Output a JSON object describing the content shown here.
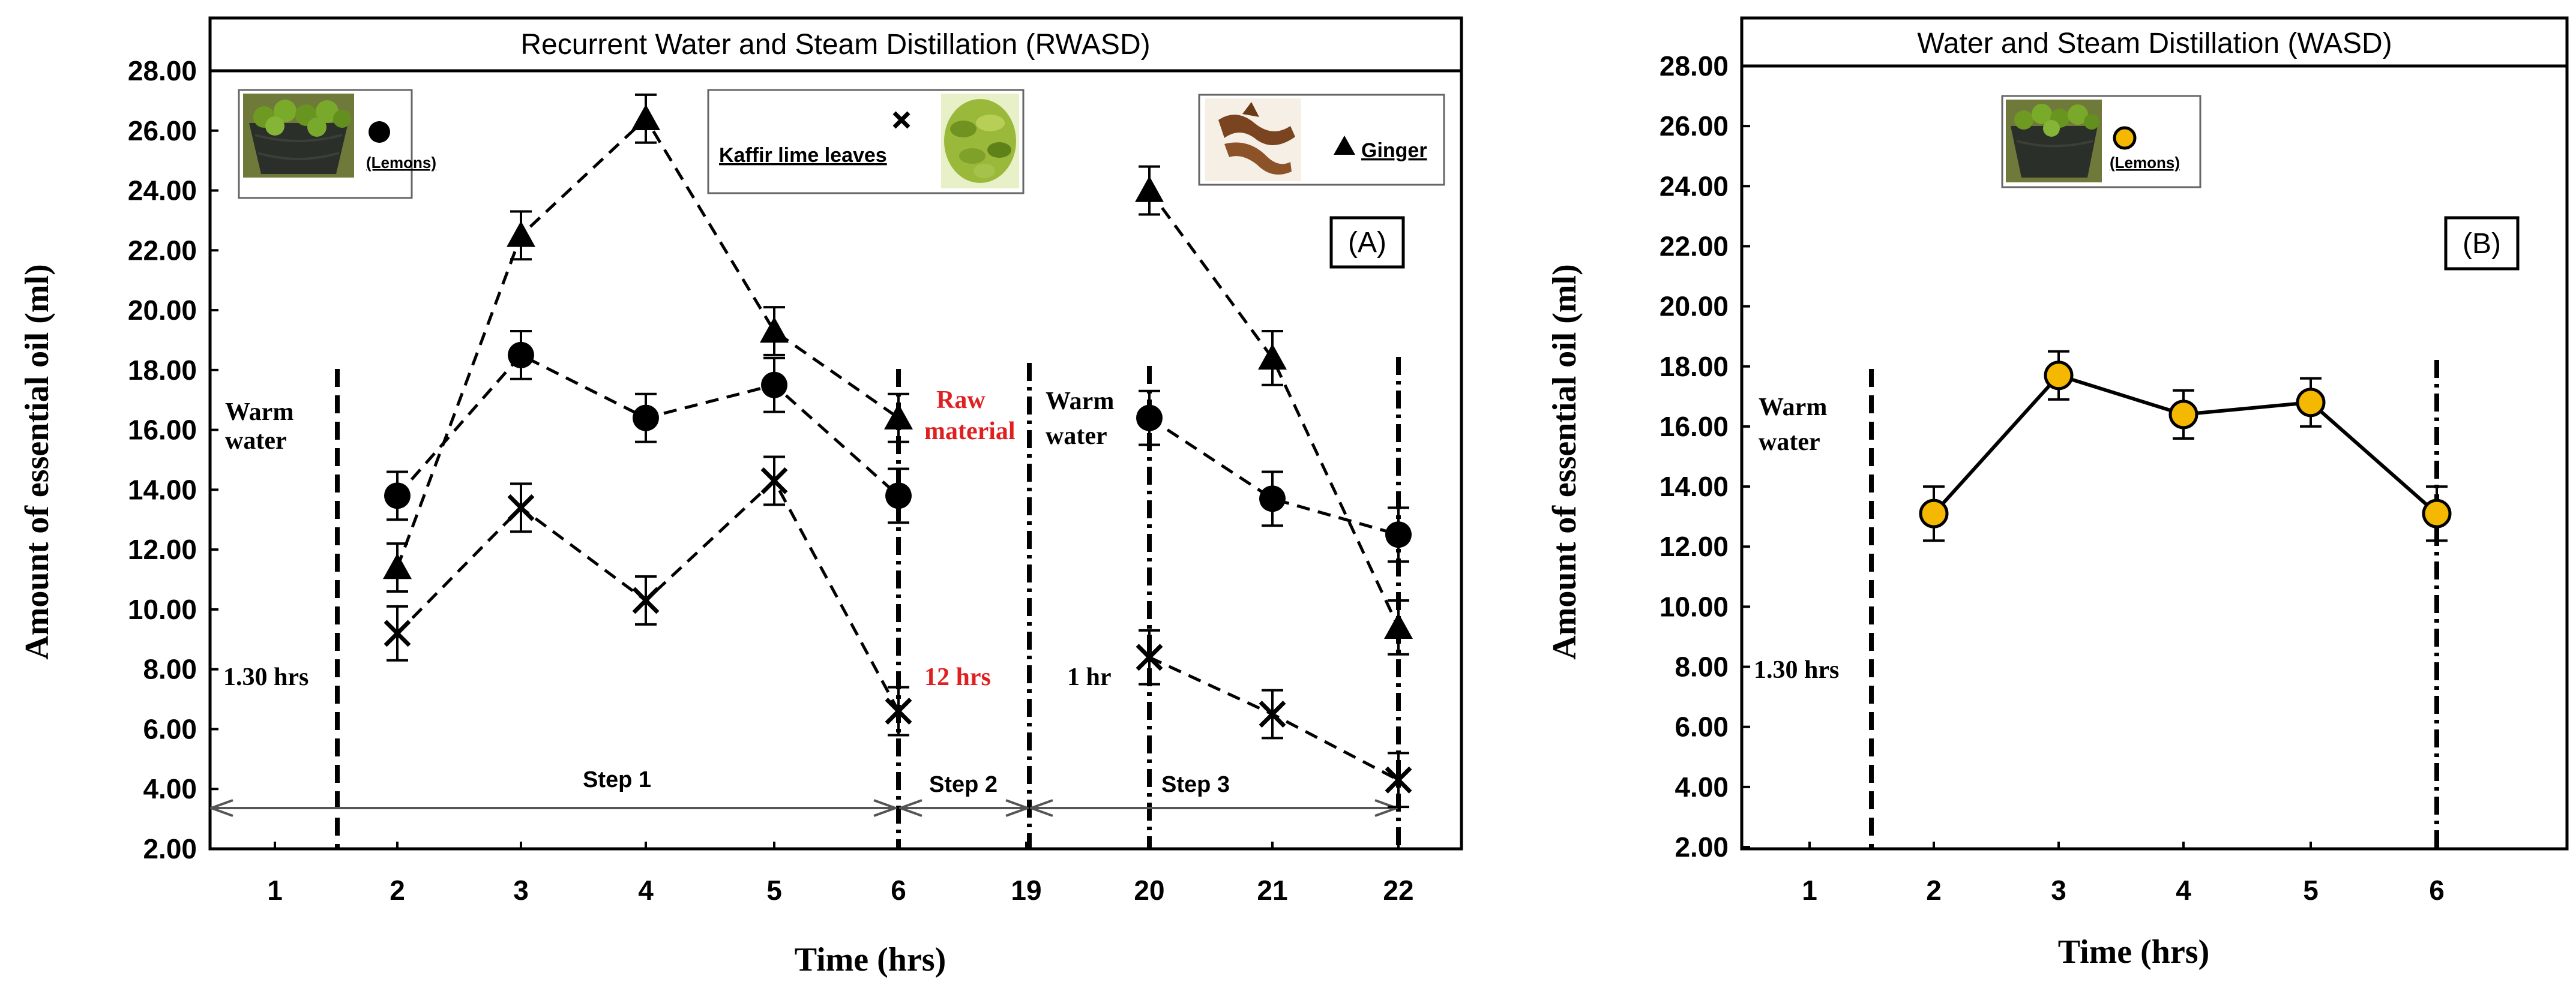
{
  "chart_data": [
    {
      "type": "line",
      "title": "Recurrent Water and Steam Distillation (RWASD)",
      "panel_label": "(A)",
      "xlabel": "Time (hrs)",
      "ylabel": "Amount of essential oil (ml)",
      "ylim": [
        2,
        28
      ],
      "ytick_labels": [
        "2.00",
        "4.00",
        "6.00",
        "8.00",
        "10.00",
        "12.00",
        "14.00",
        "16.00",
        "18.00",
        "20.00",
        "22.00",
        "24.00",
        "26.00",
        "28.00"
      ],
      "categories": [
        "1",
        "2",
        "3",
        "4",
        "5",
        "6",
        "19",
        "20",
        "21",
        "22"
      ],
      "series": [
        {
          "name": "Lemons",
          "legend_label": "(Lemons)",
          "marker": "circle",
          "color": "#000000",
          "segments": [
            [
              1,
              2,
              3,
              4,
              5
            ],
            [
              7,
              8,
              9
            ]
          ],
          "values": [
            null,
            13.8,
            18.5,
            16.4,
            17.5,
            13.8,
            null,
            16.4,
            13.7,
            12.5
          ],
          "errors": [
            0,
            0.8,
            0.8,
            0.8,
            0.9,
            0.9,
            0,
            0.9,
            0.9,
            0.9
          ]
        },
        {
          "name": "Kaffir lime leaves",
          "legend_label": "Kaffir lime leaves",
          "marker": "x",
          "color": "#000000",
          "segments": [
            [
              1,
              2,
              3,
              4,
              5
            ],
            [
              7,
              8,
              9
            ]
          ],
          "values": [
            null,
            9.2,
            13.4,
            10.3,
            14.3,
            6.6,
            null,
            8.4,
            6.5,
            4.3
          ],
          "errors": [
            0,
            0.9,
            0.8,
            0.8,
            0.8,
            0.8,
            0,
            0.9,
            0.8,
            0.9
          ]
        },
        {
          "name": "Ginger",
          "legend_label": "Ginger",
          "marker": "triangle",
          "color": "#000000",
          "segments": [
            [
              1,
              2,
              3,
              4,
              5
            ],
            [
              7,
              8,
              9
            ]
          ],
          "values": [
            null,
            11.4,
            22.5,
            26.4,
            19.3,
            16.4,
            null,
            24.0,
            18.4,
            9.4
          ],
          "errors": [
            0,
            0.8,
            0.8,
            0.8,
            0.8,
            0.8,
            0,
            0.8,
            0.9,
            0.9
          ]
        }
      ],
      "annotations": {
        "warm_water_1": "Warm",
        "warm_water_2": "water",
        "time1": "1.30 hrs",
        "raw_1": "Raw",
        "raw_2": "material",
        "time2": "12 hrs",
        "warm_water_b1": "Warm",
        "warm_water_b2": "water",
        "time3": "1 hr",
        "step1": "Step 1",
        "step2": "Step 2",
        "step3": "Step 3"
      }
    },
    {
      "type": "line",
      "title": "Water and Steam Distillation (WASD)",
      "panel_label": "(B)",
      "xlabel": "Time (hrs)",
      "ylabel": "Amount of essential oil (ml)",
      "ylim": [
        2,
        28
      ],
      "ytick_labels": [
        "2.00",
        "4.00",
        "6.00",
        "8.00",
        "10.00",
        "12.00",
        "14.00",
        "16.00",
        "18.00",
        "20.00",
        "22.00",
        "24.00",
        "26.00",
        "28.00"
      ],
      "categories": [
        "1",
        "2",
        "3",
        "4",
        "5",
        "6"
      ],
      "series": [
        {
          "name": "Lemons",
          "legend_label": "(Lemons)",
          "marker": "circle",
          "color": "#f5b800",
          "values": [
            null,
            13.1,
            17.7,
            16.4,
            16.8,
            13.1
          ],
          "errors": [
            0,
            0.9,
            0.8,
            0.8,
            0.8,
            0.9
          ]
        }
      ],
      "annotations": {
        "warm_water_1": "Warm",
        "warm_water_2": "water",
        "time1": "1.30 hrs"
      }
    }
  ]
}
